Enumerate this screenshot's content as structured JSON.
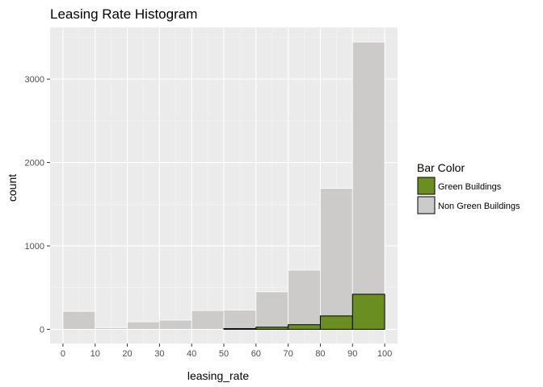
{
  "chart_data": {
    "type": "bar",
    "title": "Leasing Rate Histogram",
    "xlabel": "leasing_rate",
    "ylabel": "count",
    "xlim": [
      -4,
      104
    ],
    "ylim": [
      -170,
      3620
    ],
    "x_ticks": [
      0,
      10,
      20,
      30,
      40,
      50,
      60,
      70,
      80,
      90,
      100
    ],
    "y_ticks": [
      0,
      1000,
      2000,
      3000
    ],
    "bin_edges": [
      0,
      10,
      20,
      30,
      40,
      50,
      60,
      70,
      80,
      90,
      100
    ],
    "grid": true,
    "legend_position": "right",
    "legend_title": "Bar Color",
    "series": [
      {
        "name": "Non Green Buildings",
        "color": "#cdcaca",
        "outline": "#ffffff",
        "values": [
          215,
          20,
          90,
          110,
          225,
          230,
          450,
          710,
          1690,
          3445
        ]
      },
      {
        "name": "Green Buildings",
        "color": "#6b8e23",
        "outline": "#000000",
        "values": [
          0,
          0,
          0,
          0,
          0,
          8,
          25,
          55,
          160,
          420
        ]
      }
    ]
  }
}
